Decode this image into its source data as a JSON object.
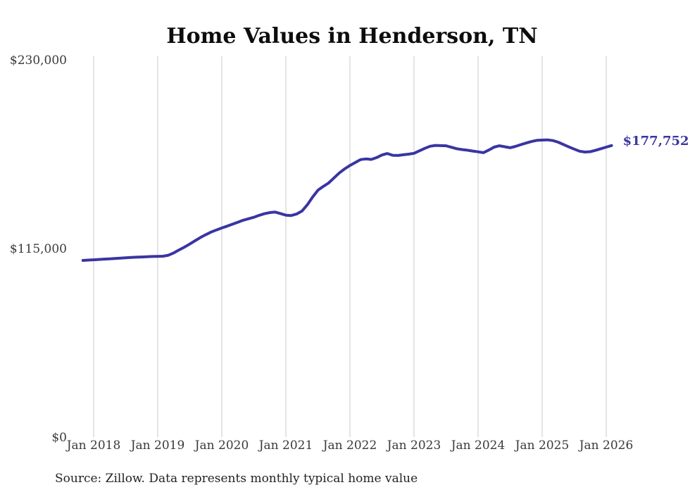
{
  "chart_data": {
    "type": "line",
    "title": "Home Values in Henderson, TN",
    "source": "Source: Zillow. Data represents monthly typical home value",
    "end_label": "$177,752",
    "latest_value": 177752,
    "line_color": "#3a35a2",
    "gridline_color": "#c9c9c9",
    "grid": "vertical-only",
    "legend": "none",
    "ylabel": "",
    "xlabel": "",
    "ylim": [
      0,
      230000
    ],
    "y_ticks": [
      {
        "value": 230000,
        "label": "$230,000"
      },
      {
        "value": 115000,
        "label": "$115,000"
      },
      {
        "value": 0,
        "label": "$0"
      }
    ],
    "x_ticks": [
      {
        "month": "2018-01",
        "label": "Jan 2018"
      },
      {
        "month": "2019-01",
        "label": "Jan 2019"
      },
      {
        "month": "2020-01",
        "label": "Jan 2020"
      },
      {
        "month": "2021-01",
        "label": "Jan 2021"
      },
      {
        "month": "2022-01",
        "label": "Jan 2022"
      },
      {
        "month": "2023-01",
        "label": "Jan 2023"
      },
      {
        "month": "2024-01",
        "label": "Jan 2024"
      },
      {
        "month": "2025-01",
        "label": "Jan 2025"
      },
      {
        "month": "2026-01",
        "label": "Jan 2026"
      }
    ],
    "x": [
      "2017-11",
      "2017-12",
      "2018-01",
      "2018-02",
      "2018-03",
      "2018-04",
      "2018-05",
      "2018-06",
      "2018-07",
      "2018-08",
      "2018-09",
      "2018-10",
      "2018-11",
      "2018-12",
      "2019-01",
      "2019-02",
      "2019-03",
      "2019-04",
      "2019-05",
      "2019-06",
      "2019-07",
      "2019-08",
      "2019-09",
      "2019-10",
      "2019-11",
      "2019-12",
      "2020-01",
      "2020-02",
      "2020-03",
      "2020-04",
      "2020-05",
      "2020-06",
      "2020-07",
      "2020-08",
      "2020-09",
      "2020-10",
      "2020-11",
      "2020-12",
      "2021-01",
      "2021-02",
      "2021-03",
      "2021-04",
      "2021-05",
      "2021-06",
      "2021-07",
      "2021-08",
      "2021-09",
      "2021-10",
      "2021-11",
      "2021-12",
      "2022-01",
      "2022-02",
      "2022-03",
      "2022-04",
      "2022-05",
      "2022-06",
      "2022-07",
      "2022-08",
      "2022-09",
      "2022-10",
      "2022-11",
      "2022-12",
      "2023-01",
      "2023-02",
      "2023-03",
      "2023-04",
      "2023-05",
      "2023-06",
      "2023-07",
      "2023-08",
      "2023-09",
      "2023-10",
      "2023-11",
      "2023-12",
      "2024-01",
      "2024-02",
      "2024-03",
      "2024-04",
      "2024-05",
      "2024-06",
      "2024-07",
      "2024-08",
      "2024-09",
      "2024-10",
      "2024-11",
      "2024-12",
      "2025-01",
      "2025-02",
      "2025-03",
      "2025-04",
      "2025-05",
      "2025-06",
      "2025-07",
      "2025-08",
      "2025-09",
      "2025-10",
      "2025-11",
      "2025-12",
      "2026-01",
      "2026-02"
    ],
    "values": [
      107700,
      107900,
      108100,
      108300,
      108500,
      108700,
      108900,
      109100,
      109300,
      109500,
      109700,
      109800,
      110000,
      110100,
      110200,
      110300,
      110900,
      112300,
      114100,
      115800,
      117700,
      119700,
      121700,
      123400,
      125000,
      126300,
      127500,
      128600,
      129800,
      131000,
      132200,
      133100,
      134000,
      135200,
      136200,
      136900,
      137200,
      136300,
      135300,
      135100,
      136000,
      137800,
      141500,
      146300,
      150500,
      152800,
      154900,
      158000,
      161000,
      163500,
      165600,
      167400,
      169200,
      169600,
      169300,
      170400,
      172000,
      172900,
      171800,
      171700,
      172100,
      172500,
      173000,
      174500,
      176000,
      177300,
      177800,
      177700,
      177600,
      176700,
      175800,
      175300,
      174900,
      174400,
      173900,
      173400,
      175000,
      176800,
      177600,
      177000,
      176400,
      177200,
      178300,
      179300,
      180200,
      180900,
      181100,
      181200,
      180800,
      179800,
      178400,
      176900,
      175600,
      174300,
      173800,
      174000,
      174800,
      175800,
      176800,
      177752
    ]
  }
}
